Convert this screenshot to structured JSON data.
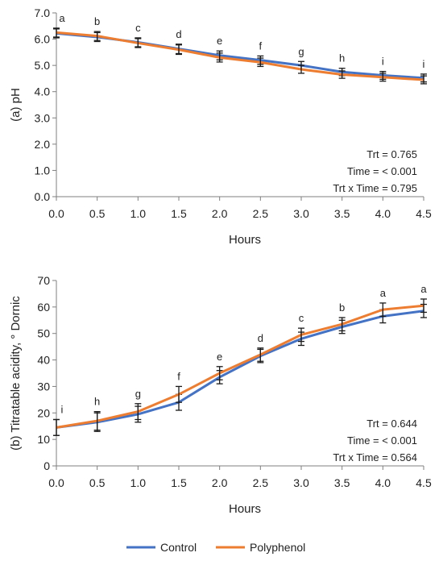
{
  "chart_data": [
    {
      "type": "line",
      "ylabel": "(a) pH",
      "xlabel": "Hours",
      "x": [
        0.0,
        0.5,
        1.0,
        1.5,
        2.0,
        2.5,
        3.0,
        3.5,
        4.0,
        4.5
      ],
      "xticks": [
        "0.0",
        "0.5",
        "1.0",
        "1.5",
        "2.0",
        "2.5",
        "3.0",
        "3.5",
        "4.0",
        "4.5"
      ],
      "xlim": [
        0,
        4.5
      ],
      "ylim": [
        0,
        7
      ],
      "yticks": [
        "0.0",
        "1.0",
        "2.0",
        "3.0",
        "4.0",
        "5.0",
        "6.0",
        "7.0"
      ],
      "ytick_values": [
        0,
        1,
        2,
        3,
        4,
        5,
        6,
        7
      ],
      "series": [
        {
          "name": "Control",
          "color": "#4472C4",
          "values": [
            6.22,
            6.08,
            5.88,
            5.63,
            5.38,
            5.2,
            5.0,
            4.75,
            4.62,
            4.52
          ],
          "error": [
            0.17,
            0.17,
            0.17,
            0.18,
            0.17,
            0.16,
            0.15,
            0.14,
            0.15,
            0.15
          ]
        },
        {
          "name": "Polyphenol",
          "color": "#ED7D31",
          "values": [
            6.25,
            6.12,
            5.85,
            5.6,
            5.3,
            5.12,
            4.85,
            4.65,
            4.55,
            4.45
          ],
          "error": [
            0.17,
            0.17,
            0.17,
            0.18,
            0.17,
            0.16,
            0.15,
            0.14,
            0.15,
            0.15
          ]
        }
      ],
      "letters": [
        "a",
        "b",
        "c",
        "d",
        "e",
        "f",
        "g",
        "h",
        "i",
        "i"
      ],
      "stats": [
        "Trt = 0.765",
        "Time = < 0.001",
        "Trt x Time = 0.795"
      ]
    },
    {
      "type": "line",
      "ylabel": "(b) Titratable acidity, ° Dornic",
      "xlabel": "Hours",
      "x": [
        0.0,
        0.5,
        1.0,
        1.5,
        2.0,
        2.5,
        3.0,
        3.5,
        4.0,
        4.5
      ],
      "xticks": [
        "0.0",
        "0.5",
        "1.0",
        "1.5",
        "2.0",
        "2.5",
        "3.0",
        "3.5",
        "4.0",
        "4.5"
      ],
      "xlim": [
        0,
        4.5
      ],
      "ylim": [
        0,
        70
      ],
      "yticks": [
        "0",
        "10",
        "20",
        "30",
        "40",
        "50",
        "60",
        "70"
      ],
      "ytick_values": [
        0,
        10,
        20,
        30,
        40,
        50,
        60,
        70
      ],
      "series": [
        {
          "name": "Control",
          "color": "#4472C4",
          "values": [
            14.5,
            16.5,
            19.5,
            24.0,
            33.5,
            41.5,
            48.0,
            52.5,
            56.5,
            58.5
          ],
          "error": [
            3.0,
            3.5,
            3.0,
            3.0,
            2.5,
            2.5,
            2.5,
            2.5,
            2.5,
            2.5
          ]
        },
        {
          "name": "Polyphenol",
          "color": "#ED7D31",
          "values": [
            14.5,
            17.0,
            20.5,
            27.0,
            35.0,
            42.0,
            49.5,
            53.5,
            59.0,
            60.5
          ],
          "error": [
            3.0,
            3.5,
            3.0,
            3.0,
            2.5,
            2.5,
            2.5,
            2.5,
            2.5,
            2.5
          ]
        }
      ],
      "letters": [
        "i",
        "h",
        "g",
        "f",
        "e",
        "d",
        "c",
        "b",
        "a",
        "a"
      ],
      "stats": [
        "Trt = 0.644",
        "Time = < 0.001",
        "Trt x Time = 0.564"
      ]
    }
  ],
  "legend": {
    "items": [
      {
        "label": "Control",
        "color": "#4472C4"
      },
      {
        "label": "Polyphenol",
        "color": "#ED7D31"
      }
    ]
  }
}
